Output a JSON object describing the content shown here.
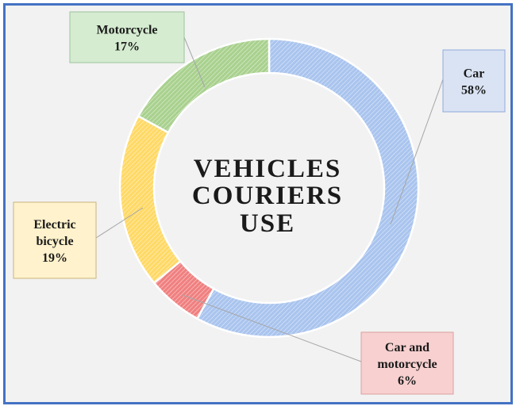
{
  "chart_data": {
    "type": "pie",
    "variant": "donut",
    "title": "VEHICLES COURIERS USE",
    "title_lines": [
      "VEHICLES",
      "COURIERS",
      "USE"
    ],
    "slices": [
      {
        "label": "Car",
        "label_lines": [
          "Car",
          "58%"
        ],
        "value": 58,
        "color": "#a9c4ee",
        "callout_bg": "#dae3f3",
        "callout_border": "#8faadc"
      },
      {
        "label": "Car and motorcycle",
        "label_lines": [
          "Car and",
          "motorcycle",
          "6%"
        ],
        "value": 6,
        "color": "#f08080",
        "callout_bg": "#f8d0d0",
        "callout_border": "#d9a0a0"
      },
      {
        "label": "Electric bicycle",
        "label_lines": [
          "Electric",
          "bicycle",
          "19%"
        ],
        "value": 19,
        "color": "#ffd966",
        "callout_bg": "#fff2cc",
        "callout_border": "#c9b47a"
      },
      {
        "label": "Motorcycle",
        "label_lines": [
          "Motorcycle",
          "17%"
        ],
        "value": 17,
        "color": "#a9d18e",
        "callout_bg": "#d5ecd0",
        "callout_border": "#9cc39c"
      }
    ],
    "legend": "none",
    "frame_color": "#4472c4",
    "background": "#f2f2f2"
  }
}
